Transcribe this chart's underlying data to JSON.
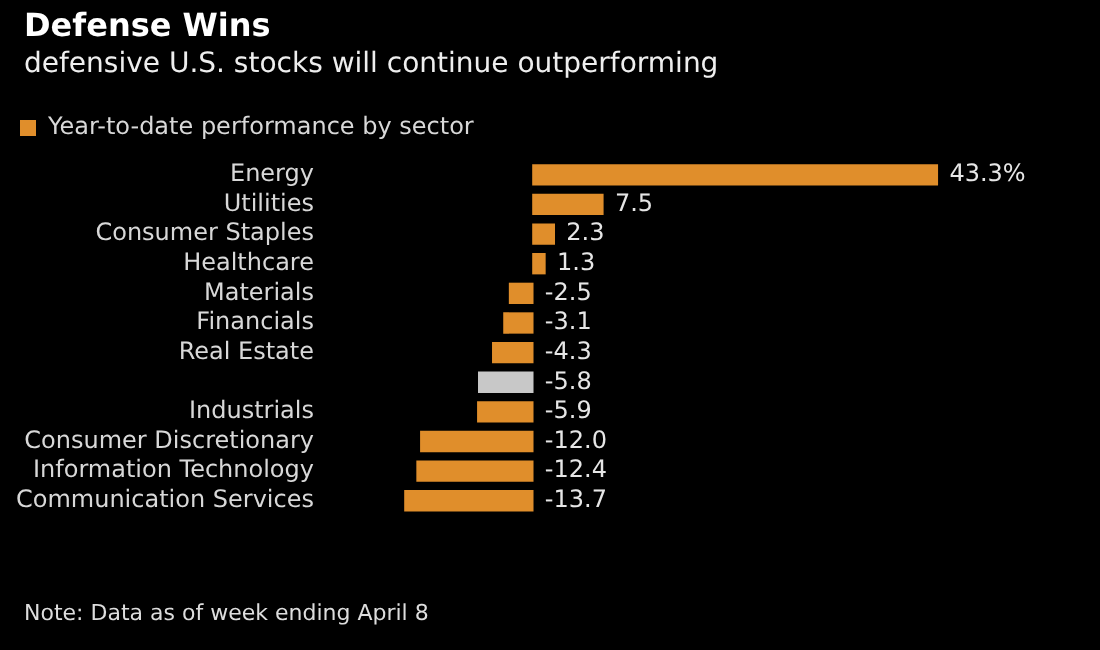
{
  "chart_data": {
    "type": "bar",
    "orientation": "horizontal",
    "title": "Defense Wins",
    "subtitle": "defensive U.S. stocks will continue outperforming",
    "categories": [
      "Energy",
      "Utilities",
      "Consumer Staples",
      "Healthcare",
      "Materials",
      "Financials",
      "Real Estate",
      null,
      "Industrials",
      "Consumer Discretionary",
      "Information Technology",
      "Communication Services"
    ],
    "series": [
      {
        "name": "Year-to-date performance by sector",
        "color": "#e08e2b",
        "colors": [
          "#e08e2b",
          "#e08e2b",
          "#e08e2b",
          "#e08e2b",
          "#e08e2b",
          "#e08e2b",
          "#e08e2b",
          "#c8c8c8",
          "#e08e2b",
          "#e08e2b",
          "#e08e2b",
          "#e08e2b"
        ],
        "values": [
          43.3,
          7.5,
          2.3,
          1.3,
          -2.5,
          -3.1,
          -4.3,
          -5.8,
          -5.9,
          -12.0,
          -12.4,
          -13.7
        ],
        "value_labels": [
          "43.3%",
          "7.5",
          "2.3",
          "1.3",
          "-2.5",
          "-3.1",
          "-4.3",
          "-5.8",
          "-5.9",
          "-12.0",
          "-12.4",
          "-13.7"
        ]
      }
    ],
    "tick_labels": "y",
    "legend": "top left",
    "annotations": [
      "Note: Data as of week ending April 8"
    ]
  }
}
